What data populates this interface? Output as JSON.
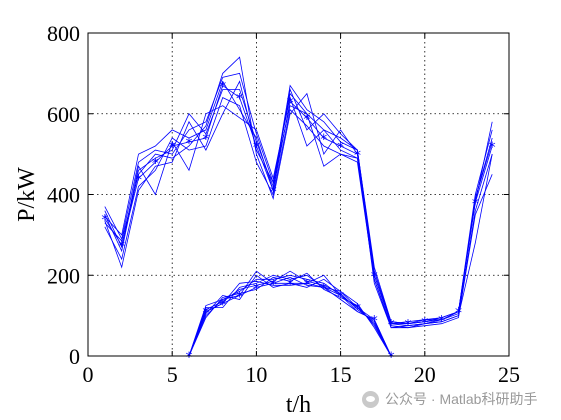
{
  "chart_data": {
    "type": "line",
    "title": "",
    "xlabel": "t/h",
    "ylabel": "P/kW",
    "xlim": [
      0,
      25
    ],
    "ylim": [
      0,
      800
    ],
    "xticks": [
      0,
      5,
      10,
      15,
      20,
      25
    ],
    "yticks": [
      0,
      200,
      400,
      600,
      800
    ],
    "grid": true,
    "line_color": "#0000ff",
    "marker": "*",
    "x": [
      1,
      2,
      3,
      4,
      5,
      6,
      7,
      8,
      9,
      10,
      11,
      12,
      13,
      14,
      15,
      16,
      17,
      18,
      19,
      20,
      21,
      22,
      23,
      24
    ],
    "upper_series": [
      {
        "values": [
          340,
          275,
          440,
          480,
          520,
          530,
          540,
          670,
          640,
          520,
          410,
          630,
          590,
          540,
          520,
          500,
          200,
          80,
          80,
          85,
          90,
          110,
          380,
          520
        ],
        "marker": true
      },
      {
        "values": [
          370,
          290,
          480,
          510,
          500,
          560,
          580,
          690,
          700,
          550,
          430,
          650,
          600,
          560,
          540,
          510,
          210,
          80,
          75,
          80,
          90,
          105,
          390,
          530
        ]
      },
      {
        "values": [
          320,
          240,
          420,
          460,
          540,
          510,
          520,
          640,
          620,
          480,
          400,
          610,
          570,
          520,
          500,
          490,
          190,
          75,
          70,
          80,
          85,
          100,
          360,
          500
        ]
      },
      {
        "values": [
          350,
          260,
          460,
          490,
          510,
          600,
          550,
          660,
          660,
          530,
          420,
          670,
          610,
          580,
          530,
          510,
          220,
          85,
          80,
          85,
          95,
          110,
          400,
          560
        ]
      },
      {
        "values": [
          330,
          285,
          450,
          500,
          490,
          520,
          570,
          700,
          740,
          500,
          390,
          600,
          650,
          500,
          560,
          500,
          180,
          70,
          70,
          75,
          80,
          95,
          350,
          450
        ]
      },
      {
        "values": [
          360,
          270,
          470,
          400,
          530,
          460,
          600,
          620,
          590,
          560,
          440,
          640,
          520,
          560,
          510,
          490,
          200,
          80,
          85,
          90,
          95,
          110,
          390,
          540
        ]
      },
      {
        "values": [
          345,
          300,
          500,
          520,
          560,
          540,
          560,
          680,
          610,
          540,
          410,
          660,
          560,
          600,
          550,
          510,
          210,
          85,
          80,
          90,
          90,
          110,
          380,
          580
        ]
      },
      {
        "values": [
          335,
          220,
          410,
          470,
          480,
          580,
          510,
          600,
          680,
          510,
          430,
          620,
          600,
          470,
          500,
          480,
          190,
          70,
          75,
          80,
          85,
          100,
          280,
          500
        ]
      }
    ],
    "lower_series": [
      {
        "values": [
          0,
          110,
          130,
          150,
          170,
          180,
          180,
          180,
          170,
          150,
          120,
          90,
          0
        ],
        "marker": true
      },
      {
        "values": [
          0,
          100,
          140,
          160,
          190,
          190,
          200,
          190,
          180,
          150,
          120,
          80,
          0
        ]
      },
      {
        "values": [
          0,
          120,
          120,
          170,
          180,
          200,
          190,
          200,
          170,
          140,
          110,
          90,
          0
        ]
      },
      {
        "values": [
          0,
          105,
          150,
          140,
          200,
          170,
          180,
          170,
          190,
          160,
          130,
          70,
          0
        ]
      },
      {
        "values": [
          0,
          115,
          135,
          165,
          175,
          185,
          210,
          185,
          175,
          155,
          115,
          85,
          0
        ]
      },
      {
        "values": [
          0,
          95,
          145,
          155,
          165,
          195,
          185,
          205,
          165,
          145,
          125,
          75,
          0
        ]
      },
      {
        "values": [
          0,
          110,
          130,
          180,
          185,
          175,
          175,
          180,
          200,
          150,
          110,
          90,
          0
        ]
      },
      {
        "values": [
          0,
          125,
          140,
          150,
          210,
          180,
          195,
          175,
          170,
          160,
          120,
          80,
          0
        ]
      }
    ],
    "lower_x": [
      6,
      7,
      8,
      9,
      10,
      11,
      12,
      13,
      14,
      15,
      16,
      17,
      18
    ]
  },
  "watermark": {
    "text": "公众号 · Matlab科研助手",
    "icon": "wechat-icon"
  }
}
